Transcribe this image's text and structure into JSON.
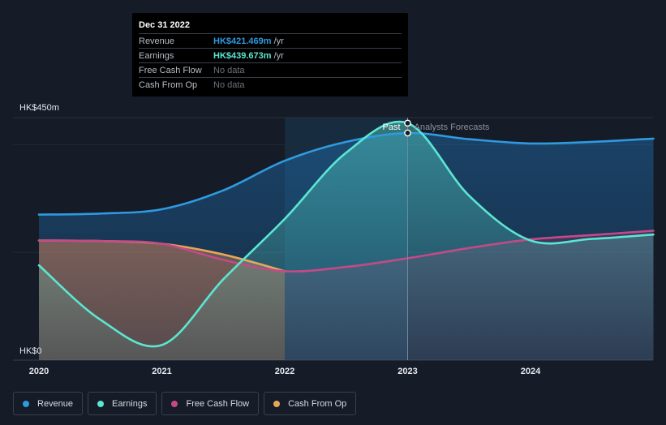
{
  "tooltip": {
    "date": "Dec 31 2022",
    "rows": [
      {
        "label": "Revenue",
        "value": "HK$421.469m",
        "unit": "/yr",
        "color": "#2f9ae0"
      },
      {
        "label": "Earnings",
        "value": "HK$439.673m",
        "unit": "/yr",
        "color": "#5ce6d1"
      },
      {
        "label": "Free Cash Flow",
        "value": "No data",
        "unit": ""
      },
      {
        "label": "Cash From Op",
        "value": "No data",
        "unit": ""
      }
    ]
  },
  "markers": {
    "past": "Past",
    "forecast": "Analysts Forecasts"
  },
  "legend": [
    {
      "label": "Revenue",
      "color": "#2f9ae0"
    },
    {
      "label": "Earnings",
      "color": "#5ce6d1"
    },
    {
      "label": "Free Cash Flow",
      "color": "#c44a87"
    },
    {
      "label": "Cash From Op",
      "color": "#e8a55a"
    }
  ],
  "chart_data": {
    "type": "line",
    "x_ticks": [
      "2020",
      "2021",
      "2022",
      "2023",
      "2024"
    ],
    "y_tick_labels": [
      "HK$450m",
      "HK$0"
    ],
    "ylim": [
      0,
      450
    ],
    "xlim": [
      2020,
      2025
    ],
    "past_end": 2023.0,
    "highlight_start": 2022.0,
    "series": [
      {
        "name": "Revenue",
        "color": "#2f9ae0",
        "points": [
          [
            2020.0,
            270
          ],
          [
            2020.5,
            272
          ],
          [
            2021.0,
            280
          ],
          [
            2021.5,
            315
          ],
          [
            2022.0,
            370
          ],
          [
            2022.5,
            405
          ],
          [
            2023.0,
            421.5
          ],
          [
            2023.5,
            410
          ],
          [
            2024.0,
            402
          ],
          [
            2024.5,
            405
          ],
          [
            2025.0,
            411
          ]
        ]
      },
      {
        "name": "Earnings",
        "color": "#5ce6d1",
        "points": [
          [
            2020.0,
            176
          ],
          [
            2020.5,
            75
          ],
          [
            2021.0,
            28
          ],
          [
            2021.5,
            150
          ],
          [
            2022.0,
            262
          ],
          [
            2022.5,
            385
          ],
          [
            2023.0,
            439.7
          ],
          [
            2023.5,
            305
          ],
          [
            2024.0,
            222
          ],
          [
            2024.5,
            225
          ],
          [
            2025.0,
            233
          ]
        ]
      },
      {
        "name": "Free Cash Flow",
        "color": "#c44a87",
        "points": [
          [
            2020.0,
            222
          ],
          [
            2020.5,
            221
          ],
          [
            2021.0,
            216
          ],
          [
            2021.5,
            186
          ],
          [
            2022.0,
            165
          ],
          [
            2022.5,
            173
          ],
          [
            2023.0,
            189
          ],
          [
            2023.5,
            208
          ],
          [
            2024.0,
            224
          ],
          [
            2024.5,
            232
          ],
          [
            2025.0,
            240
          ]
        ]
      },
      {
        "name": "Cash From Op",
        "color": "#e8a55a",
        "points": [
          [
            2020.0,
            222
          ],
          [
            2020.5,
            221
          ],
          [
            2021.0,
            216
          ],
          [
            2021.5,
            196
          ],
          [
            2022.0,
            165
          ]
        ]
      }
    ]
  }
}
